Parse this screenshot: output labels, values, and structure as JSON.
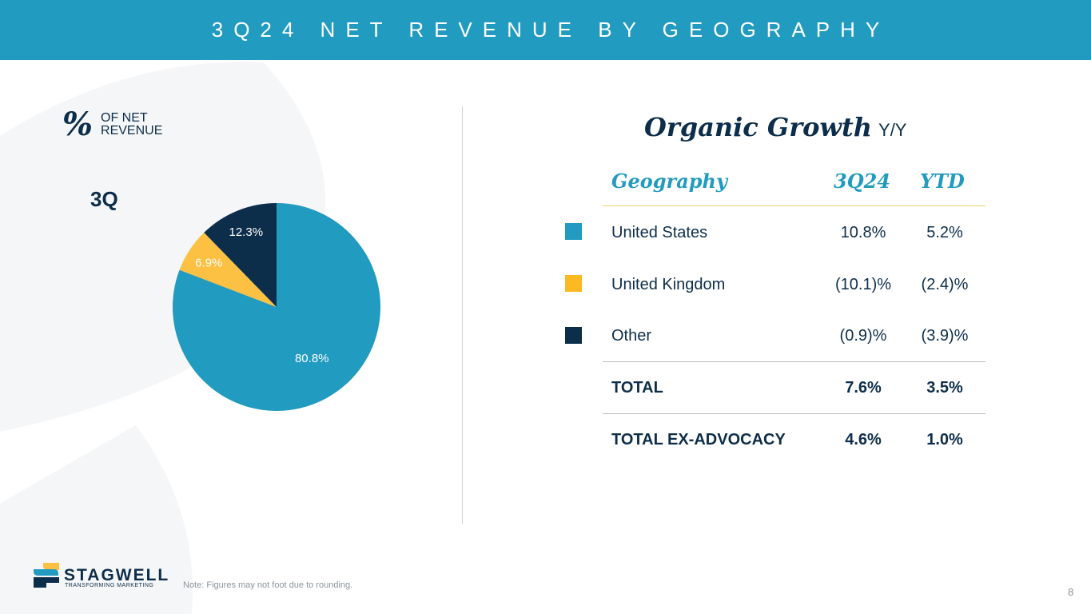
{
  "header": {
    "title": "3Q24 NET REVENUE BY GEOGRAPHY"
  },
  "left_panel": {
    "percent_symbol": "%",
    "percent_caption": "OF NET REVENUE",
    "period_label": "3Q"
  },
  "chart_data": {
    "type": "pie",
    "title": "% of Net Revenue 3Q",
    "categories": [
      "United States",
      "United Kingdom",
      "Other"
    ],
    "values": [
      80.8,
      6.9,
      12.3
    ],
    "labels": [
      "80.8%",
      "6.9%",
      "12.3%"
    ],
    "colors": [
      "#219bbf",
      "#fcc042",
      "#0d2e4a"
    ],
    "label_colors": [
      "#ffffff",
      "#ffffff",
      "#ffffff"
    ]
  },
  "table": {
    "title_main": "Organic Growth",
    "title_sub": "Y/Y",
    "headers": {
      "geo": "Geography",
      "q": "3Q24",
      "ytd": "YTD"
    },
    "rows": [
      {
        "geo": "United States",
        "q": "10.8%",
        "ytd": "5.2%",
        "color": "#219bbf"
      },
      {
        "geo": "United Kingdom",
        "q": "(10.1)%",
        "ytd": "(2.4)%",
        "color": "#fcb921"
      },
      {
        "geo": "Other",
        "q": "(0.9)%",
        "ytd": "(3.9)%",
        "color": "#0d2e4a"
      }
    ],
    "totals": [
      {
        "geo": "TOTAL",
        "q": "7.6%",
        "ytd": "3.5%"
      },
      {
        "geo": "TOTAL EX-ADVOCACY",
        "q": "4.6%",
        "ytd": "1.0%"
      }
    ]
  },
  "footer": {
    "logo_name": "STAGWELL",
    "logo_tagline": "TRANSFORMING MARKETING",
    "note": "Note: Figures may not foot due to rounding.",
    "page_number": "8"
  },
  "colors": {
    "accent": "#219bbf",
    "navy": "#0d2e4a",
    "gold": "#fcc042",
    "rule_gold": "#f2cf6a",
    "rule_gray": "#b8bcbf"
  }
}
